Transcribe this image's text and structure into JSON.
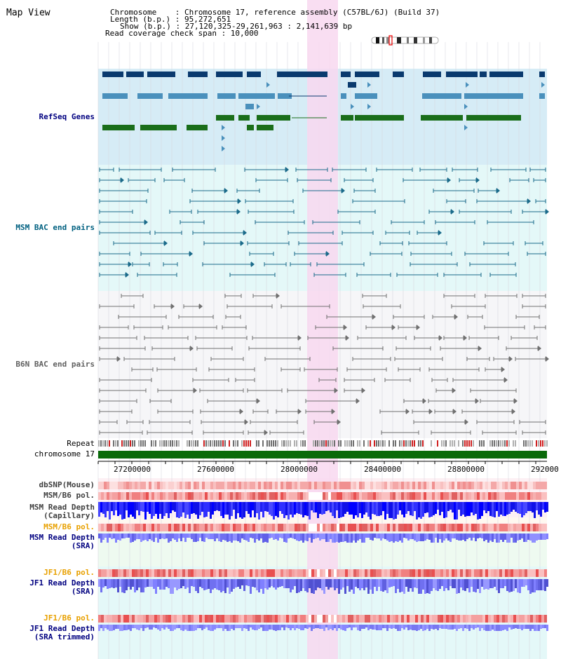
{
  "app": {
    "title": "Map View"
  },
  "info": {
    "chromosome": "Chromosome    : Chromosome 17, reference assembly (C57BL/6J) (Build 37)",
    "length": "Length (b.p.) : 95,272,651",
    "show": "Show (b.p.) : 27,120,325-29,261,963 : 2,141,639 bp",
    "coverage": "Read coverage check span : 10,000"
  },
  "tracks": {
    "refseq": "RefSeq Genes",
    "msm_bac": "MSM BAC end pairs",
    "b6n_bac": "B6N BAC end pairs",
    "repeat": "Repeat",
    "chromosome": "chromosome 17",
    "dbsnp": "dbSNP(Mouse)",
    "msm_pol1": "MSM/B6 pol.",
    "msm_depth_cap_1": "MSM Read Depth",
    "msm_depth_cap_2": "(Capillary)",
    "msm_pol2": "MSM/B6 pol.",
    "msm_depth_sra_1": "MSM Read Depth",
    "msm_depth_sra_2": "(SRA)",
    "jf1_pol1": "JF1/B6 pol.",
    "jf1_depth_1": "JF1 Read Depth",
    "jf1_depth_2": "(SRA)",
    "jf1_pol2": "JF1/B6 pol.",
    "jf1_trim_1": "JF1 Read Depth",
    "jf1_trim_2": "(SRA trimmed)"
  },
  "axis": {
    "ticks": [
      "27200000",
      "27600000",
      "28000000",
      "28400000",
      "28800000",
      "292000"
    ]
  },
  "colors": {
    "refseq_bg": "#d6ecf6",
    "msm_bg": "#e4f8f8",
    "b6n_bg": "#f6f6f8",
    "highlight": "#f8d8f0",
    "gene_dark": "#0a3a6e",
    "gene_mid": "#4a90bc",
    "gene_green": "#1a6e1a",
    "msm_line": "#1a6a8a",
    "b6n_line": "#707070",
    "chrom_bar": "#0a6a0a",
    "label_navy": "#000080",
    "label_orange": "#e8a000"
  }
}
